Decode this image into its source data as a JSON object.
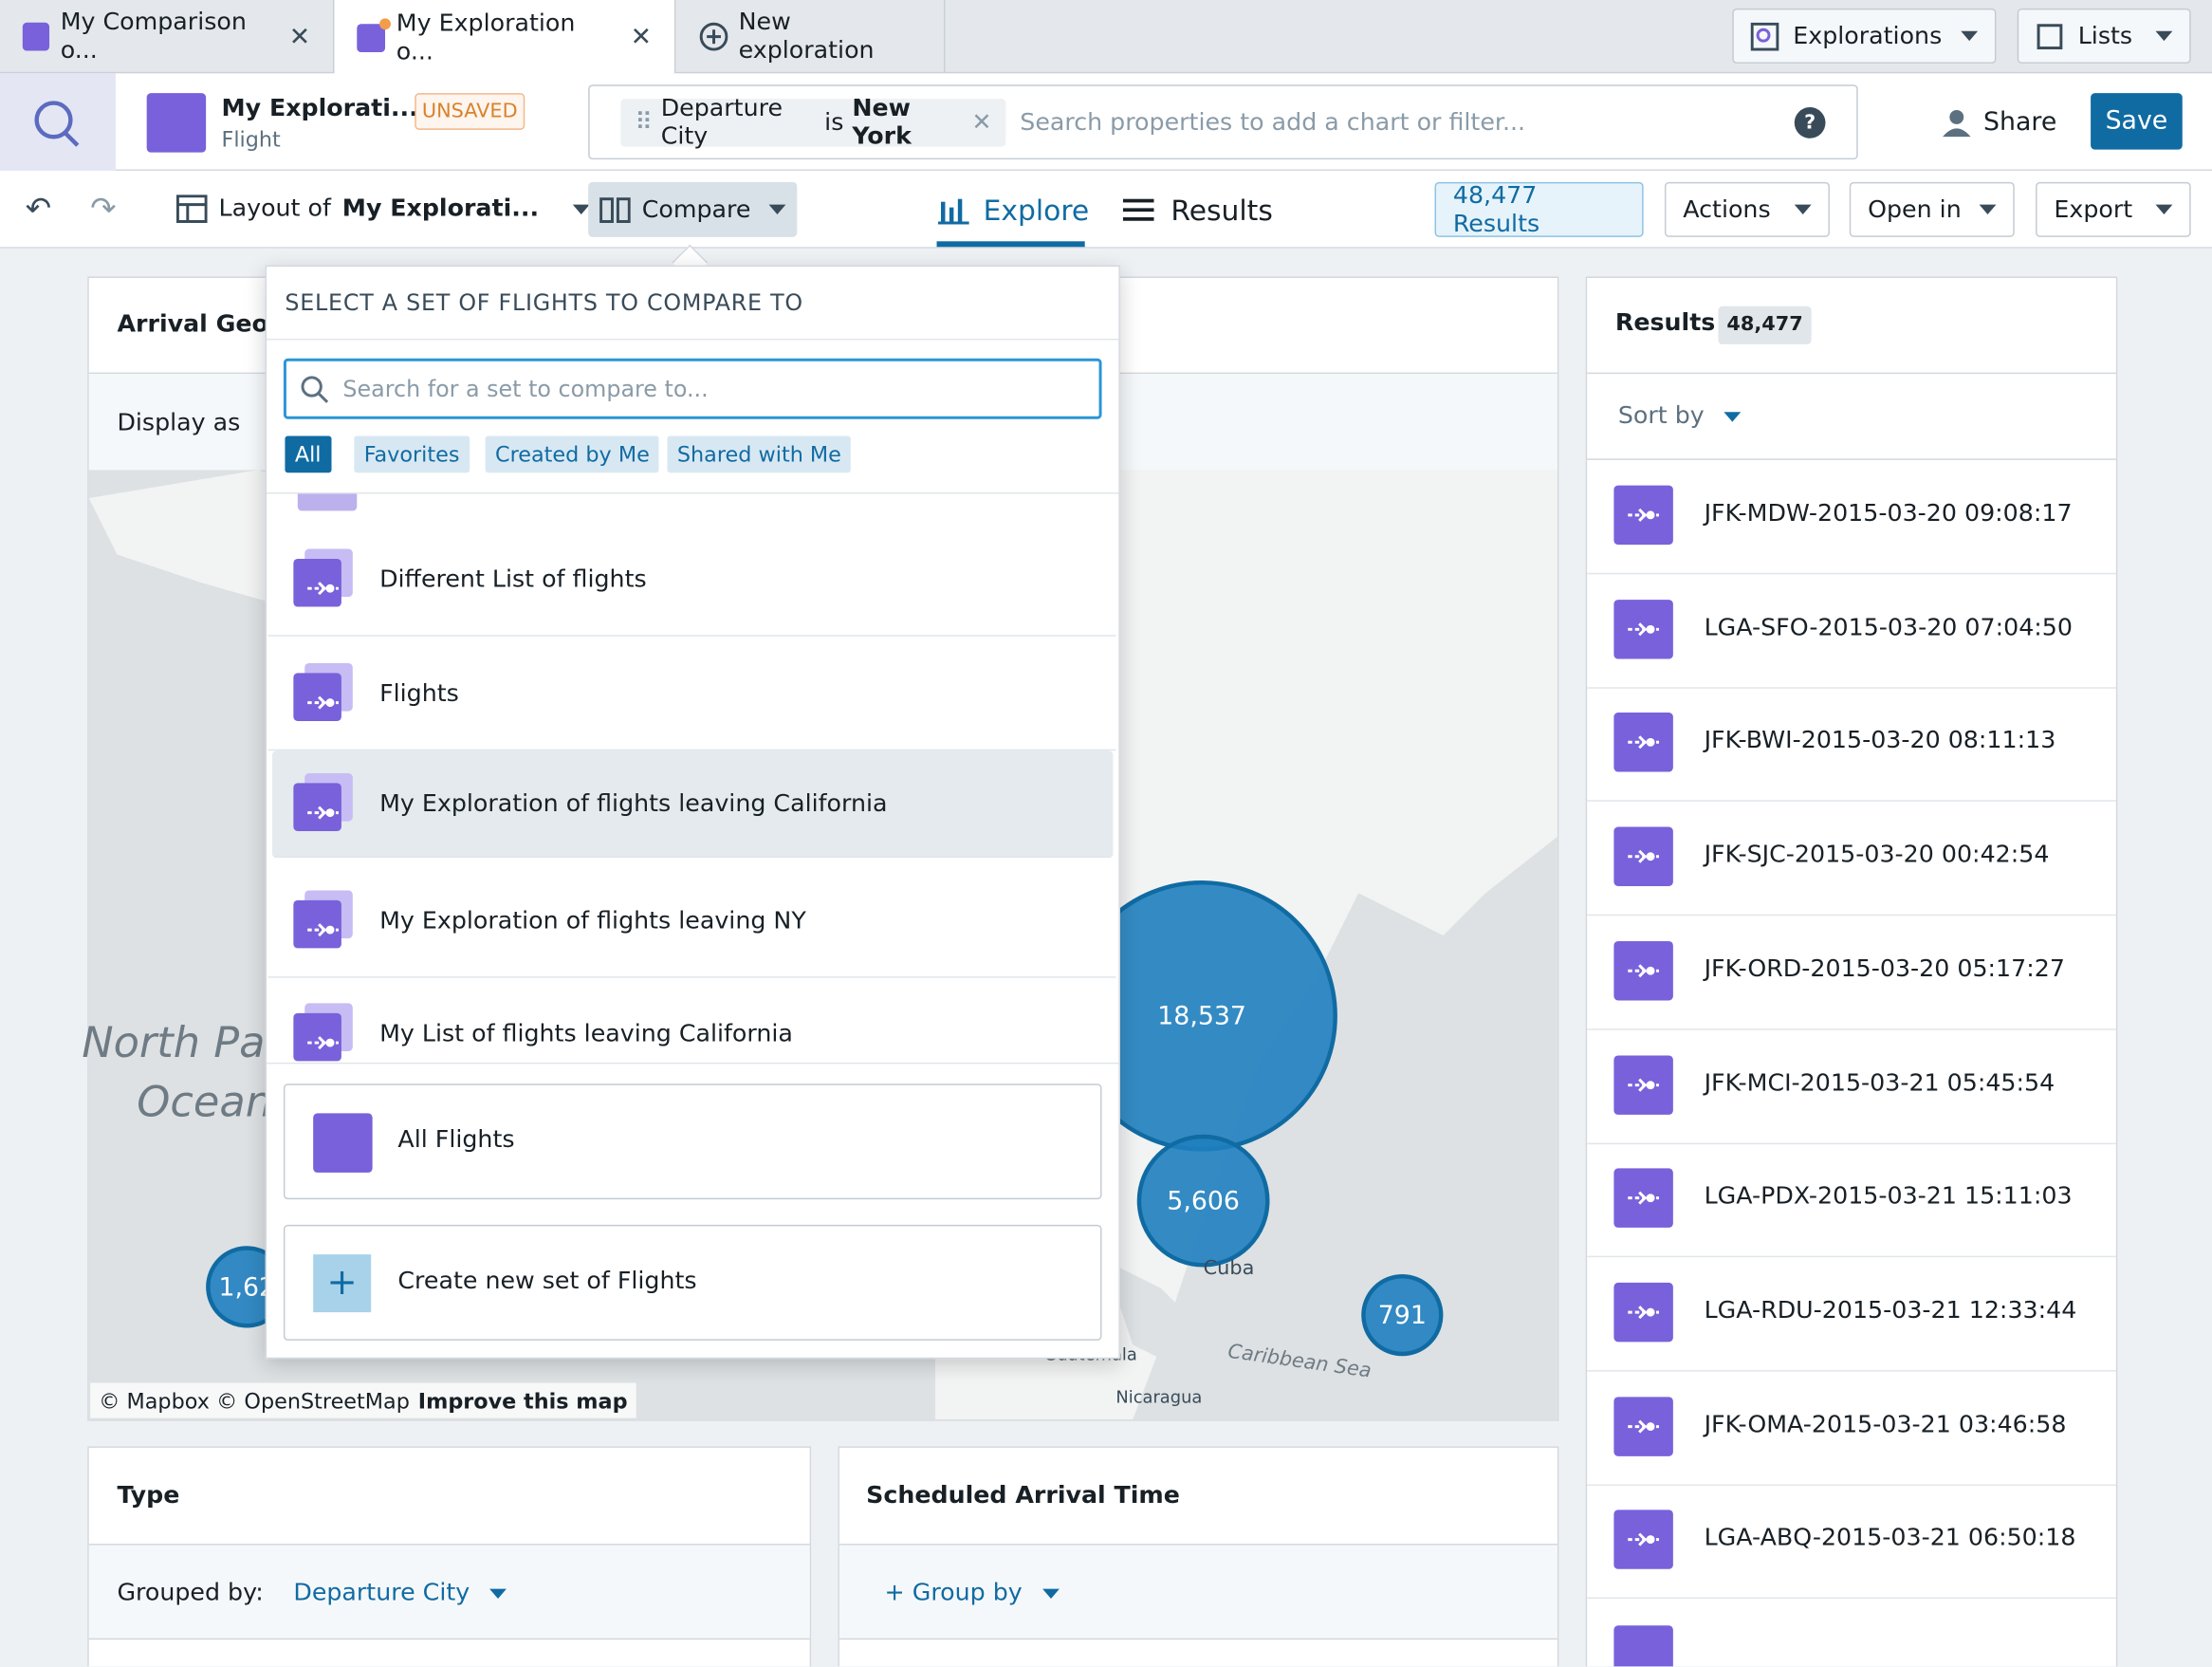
{
  "tabs": {
    "items": [
      "My Comparison o...",
      "My Exploration o...",
      "New exploration"
    ],
    "explorations": "Explorations",
    "lists": "Lists"
  },
  "header": {
    "title": "My Explorati...",
    "subtitle": "Flight",
    "badge": "UNSAVED",
    "filter": {
      "property": "Departure City",
      "operator": "is",
      "value": "New York"
    },
    "search_placeholder": "Search properties to add a chart or filter...",
    "share": "Share",
    "save": "Save"
  },
  "toolbar": {
    "layout_prefix": "Layout of",
    "layout_name": "My Explorati...",
    "compare": "Compare",
    "explore": "Explore",
    "results": "Results",
    "results_count": "48,477 Results",
    "actions": "Actions",
    "open_in": "Open in",
    "export": "Export"
  },
  "dropdown": {
    "heading": "SELECT A SET OF FLIGHTS TO COMPARE TO",
    "search_placeholder": "Search for a set to compare to...",
    "filters": [
      "All",
      "Favorites",
      "Created by Me",
      "Shared with Me"
    ],
    "items": [
      "Different List of flights",
      "Flights",
      "My Exploration of flights leaving California",
      "My Exploration of flights leaving NY",
      "My List of flights leaving California"
    ],
    "pinned": "All Flights",
    "create": "Create new set of Flights"
  },
  "map_card": {
    "title": "Arrival Geoh",
    "display_as": "Display as",
    "ocean_1": "North Pac",
    "ocean_2": "Ocean",
    "clusters": [
      "18,537",
      "5,606",
      "791",
      "1,62"
    ],
    "places": [
      "Cuba",
      "Caribbean Sea",
      "Nicaragua",
      "Guatemala"
    ],
    "attribution": "© Mapbox © OpenStreetMap",
    "improve": "Improve this map"
  },
  "results_panel": {
    "title": "Results",
    "count": "48,477",
    "sort_by": "Sort by",
    "items": [
      "JFK-MDW-2015-03-20 09:08:17",
      "LGA-SFO-2015-03-20 07:04:50",
      "JFK-BWI-2015-03-20 08:11:13",
      "JFK-SJC-2015-03-20 00:42:54",
      "JFK-ORD-2015-03-20 05:17:27",
      "JFK-MCI-2015-03-21 05:45:54",
      "LGA-PDX-2015-03-21 15:11:03",
      "LGA-RDU-2015-03-21 12:33:44",
      "JFK-OMA-2015-03-21 03:46:58",
      "LGA-ABQ-2015-03-21 06:50:18"
    ]
  },
  "type_card": {
    "title": "Type",
    "grouped_by": "Grouped by:",
    "group_value": "Departure City"
  },
  "arrival_card": {
    "title": "Scheduled Arrival Time",
    "group_by": "+ Group by"
  }
}
